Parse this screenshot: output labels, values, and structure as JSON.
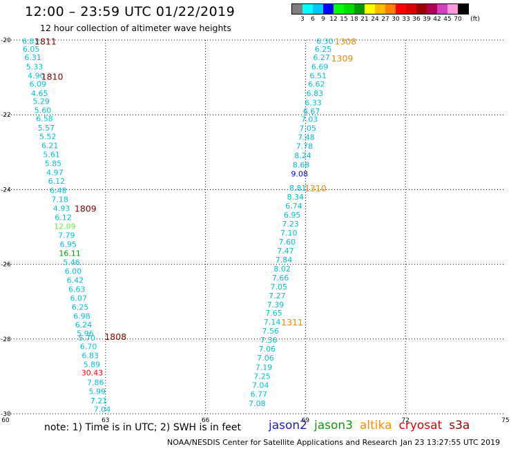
{
  "header": {
    "title": "12:00 – 23:59 UTC 01/22/2019",
    "subtitle": "12 hour collection of altimeter wave heights"
  },
  "colorbar": {
    "unit": "(ft)",
    "colors": [
      "#7f7f7f",
      "#00ffff",
      "#00c8ff",
      "#0000ff",
      "#00ff00",
      "#00dd00",
      "#009900",
      "#ffff00",
      "#ffbb00",
      "#ff8000",
      "#ff0000",
      "#dd0000",
      "#990000",
      "#b00055",
      "#d040c0",
      "#ff99dd",
      "#000000"
    ],
    "ticks": [
      "3",
      "6",
      "9",
      "12",
      "15",
      "18",
      "21",
      "24",
      "27",
      "30",
      "33",
      "36",
      "39",
      "42",
      "45",
      "70"
    ]
  },
  "footer": {
    "note": "note:  1) Time is in UTC;  2) SWH is in feet",
    "legend": [
      {
        "name": "jason2",
        "color": "#1a1acc"
      },
      {
        "name": "jason3",
        "color": "#119911"
      },
      {
        "name": "altika",
        "color": "#ff8c00"
      },
      {
        "name": "cryosat",
        "color": "#dd0000"
      },
      {
        "name": "s3a",
        "color": "#990000"
      }
    ],
    "credit": "NOAA/NESDIS Center for Satellite Applications and Research",
    "timestamp": "Jan 23 13:27:55 UTC 2019"
  },
  "chart_data": {
    "type": "scatter",
    "xlim": [
      60,
      75
    ],
    "ylim": [
      -30,
      -20
    ],
    "xticks": [
      60,
      63,
      66,
      69,
      72,
      75
    ],
    "yticks": [
      -20,
      -22,
      -24,
      -26,
      -28,
      -30
    ],
    "grid": true,
    "tracks": [
      {
        "satellite": "s3a",
        "times": [
          {
            "label": "1811",
            "x": 61.2,
            "y": -20.03
          },
          {
            "label": "1810",
            "x": 61.4,
            "y": -20.97
          },
          {
            "label": "1809",
            "x": 62.4,
            "y": -24.5
          },
          {
            "label": "1808",
            "x": 63.3,
            "y": -27.93
          }
        ],
        "points": [
          {
            "x": 60.75,
            "y": -20.03,
            "v": "6.83",
            "c": "#00c0dd"
          },
          {
            "x": 60.77,
            "y": -20.24,
            "v": "6.05",
            "c": "#00c0dd"
          },
          {
            "x": 60.82,
            "y": -20.46,
            "v": "6.31",
            "c": "#00c0dd"
          },
          {
            "x": 60.87,
            "y": -20.71,
            "v": "5.33",
            "c": "#00c0dd"
          },
          {
            "x": 60.92,
            "y": -20.95,
            "v": "4.90",
            "c": "#00c0dd"
          },
          {
            "x": 60.97,
            "y": -21.17,
            "v": "6.09",
            "c": "#00c0dd"
          },
          {
            "x": 61.02,
            "y": -21.42,
            "v": "4.65",
            "c": "#00c0dd"
          },
          {
            "x": 61.07,
            "y": -21.64,
            "v": "5.29",
            "c": "#00c0dd"
          },
          {
            "x": 61.12,
            "y": -21.88,
            "v": "5.60",
            "c": "#00c0dd"
          },
          {
            "x": 61.17,
            "y": -22.1,
            "v": "6.58",
            "c": "#00c0dd"
          },
          {
            "x": 61.22,
            "y": -22.35,
            "v": "5.57",
            "c": "#00c0dd"
          },
          {
            "x": 61.27,
            "y": -22.58,
            "v": "5.52",
            "c": "#00c0dd"
          },
          {
            "x": 61.33,
            "y": -22.82,
            "v": "6.21",
            "c": "#00c0dd"
          },
          {
            "x": 61.38,
            "y": -23.06,
            "v": "5.61",
            "c": "#00c0dd"
          },
          {
            "x": 61.43,
            "y": -23.3,
            "v": "5.85",
            "c": "#00c0dd"
          },
          {
            "x": 61.48,
            "y": -23.54,
            "v": "4.97",
            "c": "#00c0dd"
          },
          {
            "x": 61.53,
            "y": -23.77,
            "v": "6.12",
            "c": "#00c0dd"
          },
          {
            "x": 61.58,
            "y": -24.02,
            "v": "6.48",
            "c": "#00c0dd"
          },
          {
            "x": 61.63,
            "y": -24.26,
            "v": "7.18",
            "c": "#00c0dd"
          },
          {
            "x": 61.68,
            "y": -24.5,
            "v": "4.93",
            "c": "#00c0dd"
          },
          {
            "x": 61.73,
            "y": -24.74,
            "v": "6.12",
            "c": "#00c0dd"
          },
          {
            "x": 61.78,
            "y": -24.98,
            "v": "12.09",
            "c": "#66ee44"
          },
          {
            "x": 61.83,
            "y": -25.22,
            "v": "7.79",
            "c": "#00c0dd"
          },
          {
            "x": 61.88,
            "y": -25.46,
            "v": "6.95",
            "c": "#00c0dd"
          },
          {
            "x": 61.93,
            "y": -25.7,
            "v": "16.11",
            "c": "#009900"
          },
          {
            "x": 61.98,
            "y": -25.94,
            "v": "5.46",
            "c": "#00c0dd"
          },
          {
            "x": 62.03,
            "y": -26.18,
            "v": "6.00",
            "c": "#00c0dd"
          },
          {
            "x": 62.09,
            "y": -26.42,
            "v": "6.42",
            "c": "#00c0dd"
          },
          {
            "x": 62.14,
            "y": -26.66,
            "v": "6.63",
            "c": "#00c0dd"
          },
          {
            "x": 62.19,
            "y": -26.9,
            "v": "6.07",
            "c": "#00c0dd"
          },
          {
            "x": 62.24,
            "y": -27.14,
            "v": "6.25",
            "c": "#00c0dd"
          },
          {
            "x": 62.29,
            "y": -27.38,
            "v": "6.98",
            "c": "#00c0dd"
          },
          {
            "x": 62.34,
            "y": -27.62,
            "v": "6.24",
            "c": "#00c0dd"
          },
          {
            "x": 62.39,
            "y": -27.85,
            "v": "5.96",
            "c": "#00c0dd"
          },
          {
            "x": 62.44,
            "y": -27.97,
            "v": "5.70",
            "c": "#00c0dd"
          },
          {
            "x": 62.49,
            "y": -28.2,
            "v": "6.70",
            "c": "#00c0dd"
          },
          {
            "x": 62.54,
            "y": -28.44,
            "v": "6.83",
            "c": "#00c0dd"
          },
          {
            "x": 62.59,
            "y": -28.68,
            "v": "5.89",
            "c": "#00c0dd"
          },
          {
            "x": 62.6,
            "y": -28.9,
            "v": "30.43",
            "c": "#ff0000"
          },
          {
            "x": 62.7,
            "y": -29.16,
            "v": "7.86",
            "c": "#00c0dd"
          },
          {
            "x": 62.75,
            "y": -29.4,
            "v": "5.99",
            "c": "#00c0dd"
          },
          {
            "x": 62.8,
            "y": -29.65,
            "v": "7.21",
            "c": "#00c0dd"
          },
          {
            "x": 62.9,
            "y": -29.88,
            "v": "7.04",
            "c": "#00c0dd"
          }
        ]
      },
      {
        "satellite": "altika",
        "times": [
          {
            "label": "1308",
            "x": 70.2,
            "y": -20.03
          },
          {
            "label": "1309",
            "x": 70.1,
            "y": -20.48
          },
          {
            "label": "1310",
            "x": 69.3,
            "y": -23.96
          },
          {
            "label": "1311",
            "x": 68.6,
            "y": -27.54
          }
        ],
        "points": [
          {
            "x": 69.58,
            "y": -20.03,
            "v": "6.30",
            "c": "#00c0dd"
          },
          {
            "x": 69.53,
            "y": -20.24,
            "v": "6.25",
            "c": "#00c0dd"
          },
          {
            "x": 69.48,
            "y": -20.46,
            "v": "6.27",
            "c": "#00c0dd"
          },
          {
            "x": 69.43,
            "y": -20.71,
            "v": "6.69",
            "c": "#00c0dd"
          },
          {
            "x": 69.38,
            "y": -20.95,
            "v": "6.51",
            "c": "#00c0dd"
          },
          {
            "x": 69.33,
            "y": -21.17,
            "v": "6.62",
            "c": "#00c0dd"
          },
          {
            "x": 69.28,
            "y": -21.42,
            "v": "6.83",
            "c": "#00c0dd"
          },
          {
            "x": 69.23,
            "y": -21.67,
            "v": "6.33",
            "c": "#00c0dd"
          },
          {
            "x": 69.18,
            "y": -21.9,
            "v": "6.67",
            "c": "#00c0dd"
          },
          {
            "x": 69.12,
            "y": -22.12,
            "v": "7.03",
            "c": "#00c0dd"
          },
          {
            "x": 69.07,
            "y": -22.36,
            "v": "7.05",
            "c": "#00c0dd"
          },
          {
            "x": 69.02,
            "y": -22.6,
            "v": "7.48",
            "c": "#00c0dd"
          },
          {
            "x": 68.97,
            "y": -22.84,
            "v": "7.78",
            "c": "#00c0dd"
          },
          {
            "x": 68.92,
            "y": -23.09,
            "v": "8.24",
            "c": "#00c0dd"
          },
          {
            "x": 68.87,
            "y": -23.34,
            "v": "8.68",
            "c": "#00c0dd"
          },
          {
            "x": 68.82,
            "y": -23.58,
            "v": "9.08",
            "c": "#0000ff"
          },
          {
            "x": 68.77,
            "y": -23.96,
            "v": "8.81",
            "c": "#00c0dd"
          },
          {
            "x": 68.7,
            "y": -24.2,
            "v": "8.34",
            "c": "#00c0dd"
          },
          {
            "x": 68.65,
            "y": -24.44,
            "v": "6.74",
            "c": "#00c0dd"
          },
          {
            "x": 68.6,
            "y": -24.68,
            "v": "6.95",
            "c": "#00c0dd"
          },
          {
            "x": 68.55,
            "y": -24.92,
            "v": "7.23",
            "c": "#00c0dd"
          },
          {
            "x": 68.5,
            "y": -25.16,
            "v": "7.10",
            "c": "#00c0dd"
          },
          {
            "x": 68.45,
            "y": -25.4,
            "v": "7.60",
            "c": "#00c0dd"
          },
          {
            "x": 68.4,
            "y": -25.64,
            "v": "7.47",
            "c": "#00c0dd"
          },
          {
            "x": 68.35,
            "y": -25.88,
            "v": "7.84",
            "c": "#00c0dd"
          },
          {
            "x": 68.3,
            "y": -26.12,
            "v": "8.02",
            "c": "#00c0dd"
          },
          {
            "x": 68.25,
            "y": -26.36,
            "v": "7.66",
            "c": "#00c0dd"
          },
          {
            "x": 68.2,
            "y": -26.6,
            "v": "7.05",
            "c": "#00c0dd"
          },
          {
            "x": 68.15,
            "y": -26.84,
            "v": "7.27",
            "c": "#00c0dd"
          },
          {
            "x": 68.1,
            "y": -27.08,
            "v": "7.39",
            "c": "#00c0dd"
          },
          {
            "x": 68.05,
            "y": -27.3,
            "v": "7.65",
            "c": "#00c0dd"
          },
          {
            "x": 68.0,
            "y": -27.54,
            "v": "7.14",
            "c": "#00c0dd"
          },
          {
            "x": 67.95,
            "y": -27.78,
            "v": "7.56",
            "c": "#00c0dd"
          },
          {
            "x": 67.9,
            "y": -28.02,
            "v": "7.36",
            "c": "#00c0dd"
          },
          {
            "x": 67.85,
            "y": -28.26,
            "v": "7.06",
            "c": "#00c0dd"
          },
          {
            "x": 67.8,
            "y": -28.5,
            "v": "7.06",
            "c": "#00c0dd"
          },
          {
            "x": 67.75,
            "y": -28.75,
            "v": "7.19",
            "c": "#00c0dd"
          },
          {
            "x": 67.7,
            "y": -28.99,
            "v": "7.25",
            "c": "#00c0dd"
          },
          {
            "x": 67.65,
            "y": -29.23,
            "v": "7.04",
            "c": "#00c0dd"
          },
          {
            "x": 67.6,
            "y": -29.47,
            "v": "6.77",
            "c": "#00c0dd"
          },
          {
            "x": 67.55,
            "y": -29.72,
            "v": "7.08",
            "c": "#00c0dd"
          }
        ]
      }
    ]
  }
}
